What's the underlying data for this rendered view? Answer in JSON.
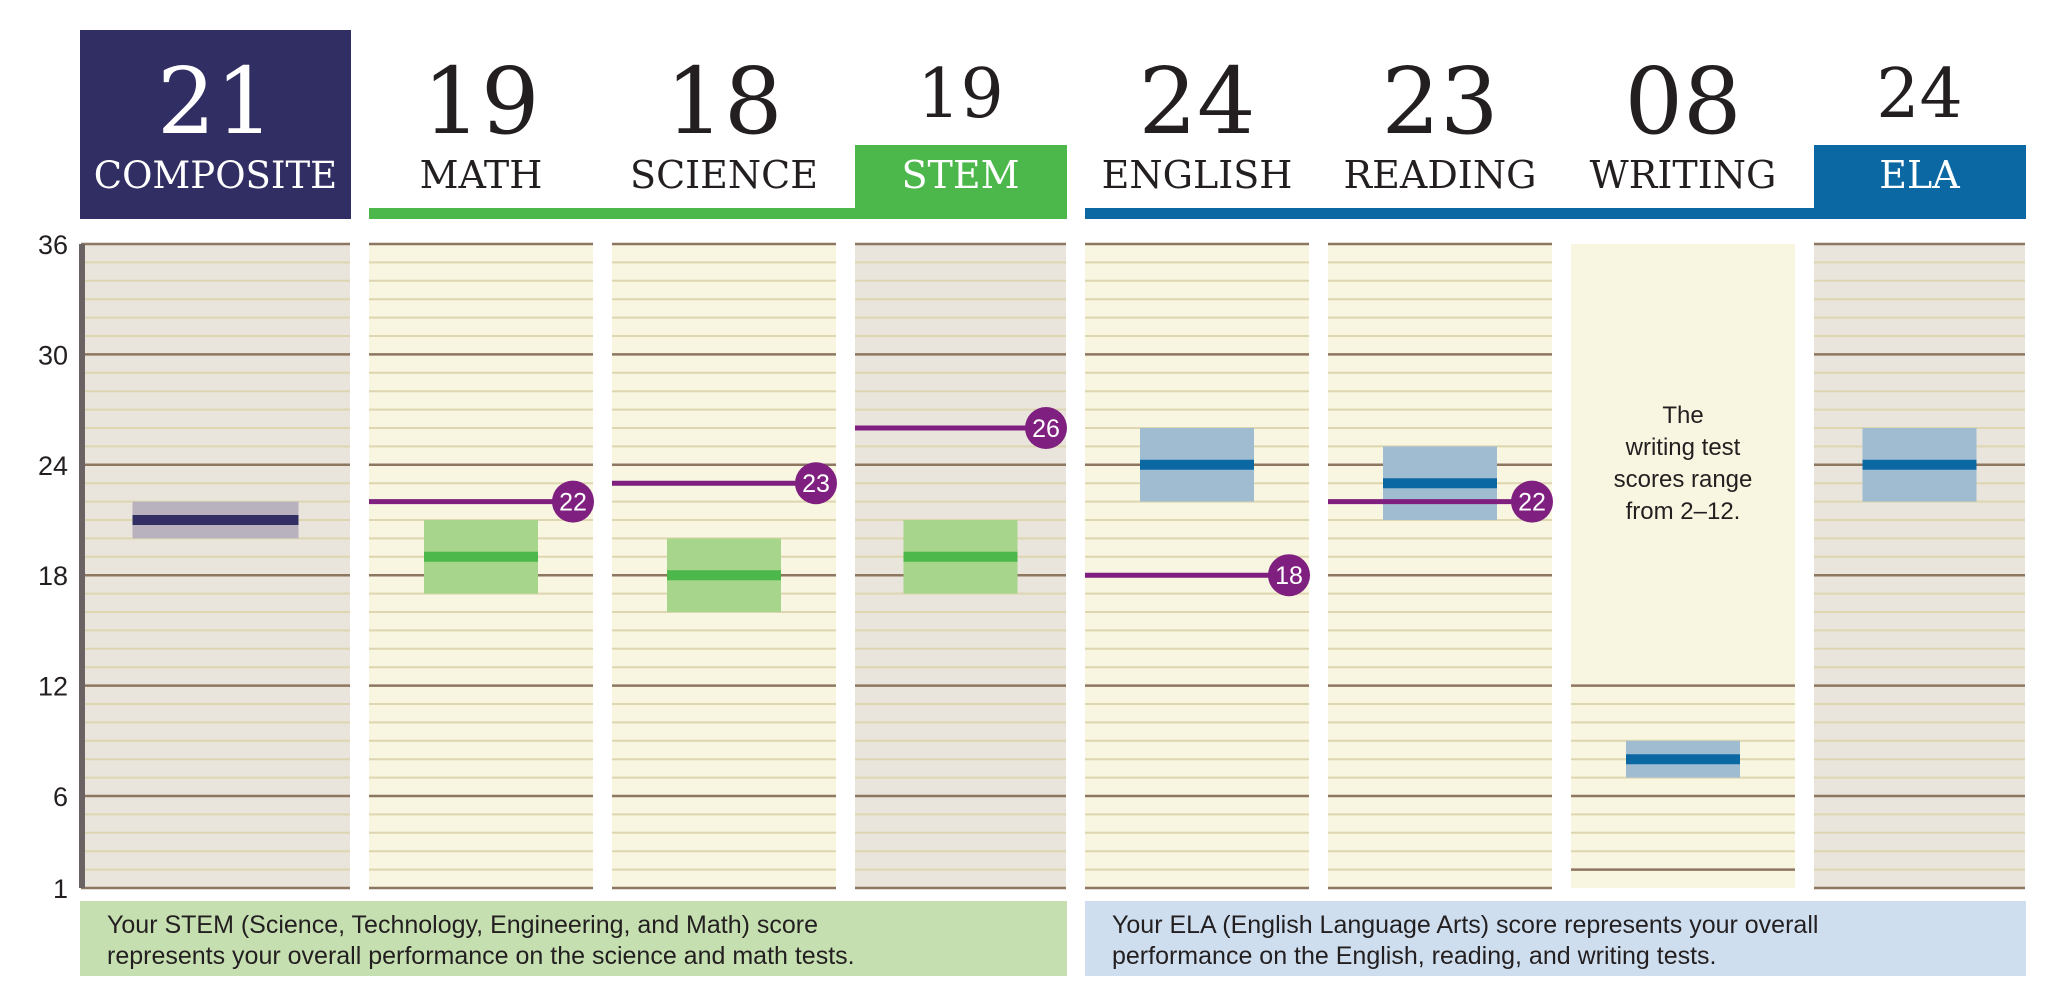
{
  "chart_data": {
    "type": "bar",
    "ylim": [
      1,
      36
    ],
    "y_ticks": [
      1,
      6,
      12,
      18,
      24,
      30,
      36
    ],
    "grid": true,
    "columns": [
      {
        "key": "composite",
        "score": "21",
        "label": "COMPOSITE",
        "value": 21,
        "range": [
          20,
          22
        ],
        "benchmark": null,
        "style": "composite"
      },
      {
        "key": "math",
        "score": "19",
        "label": "MATH",
        "value": 19,
        "range": [
          17,
          21
        ],
        "benchmark": 22,
        "style": "stem-sub"
      },
      {
        "key": "science",
        "score": "18",
        "label": "SCIENCE",
        "value": 18,
        "range": [
          16,
          20
        ],
        "benchmark": 23,
        "style": "stem-sub"
      },
      {
        "key": "stem",
        "score": "19",
        "label": "STEM",
        "value": 19,
        "range": [
          17,
          21
        ],
        "benchmark": 26,
        "style": "stem"
      },
      {
        "key": "english",
        "score": "24",
        "label": "ENGLISH",
        "value": 24,
        "range": [
          22,
          26
        ],
        "benchmark": 18,
        "style": "ela-sub"
      },
      {
        "key": "reading",
        "score": "23",
        "label": "READING",
        "value": 23,
        "range": [
          21,
          25
        ],
        "benchmark": 22,
        "style": "ela-sub"
      },
      {
        "key": "writing",
        "score": "08",
        "label": "WRITING",
        "value": 8,
        "range": [
          7,
          9
        ],
        "benchmark": null,
        "style": "writing",
        "range_limits": [
          2,
          12
        ],
        "note": [
          "The",
          "writing test",
          "scores range",
          "from 2–12."
        ]
      },
      {
        "key": "ela",
        "score": "24",
        "label": "ELA",
        "value": 24,
        "range": [
          22,
          26
        ],
        "benchmark": null,
        "style": "ela"
      }
    ],
    "footnotes": {
      "stem": [
        "Your STEM (Science, Technology, Engineering, and Math) score",
        "represents your overall performance on the science and math tests."
      ],
      "ela": [
        "Your ELA (English Language Arts) score represents your overall",
        "performance on the English, reading, and writing tests."
      ]
    }
  },
  "colors": {
    "composite": "#302e63",
    "composite_band": "#b8b2bf",
    "green": "#4cb74a",
    "green_band": "#a7d58b",
    "blue": "#0b68a3",
    "blue_band": "#a0bcd0",
    "purple": "#7f1f7f",
    "panel_light": "#f8f6e0",
    "panel_dark": "#e9e4dc",
    "grid_major": "#8e7760",
    "grid_minor": "#ddd6b0",
    "stem_note_bg": "#c6dfb1",
    "ela_note_bg": "#cfdeee"
  }
}
